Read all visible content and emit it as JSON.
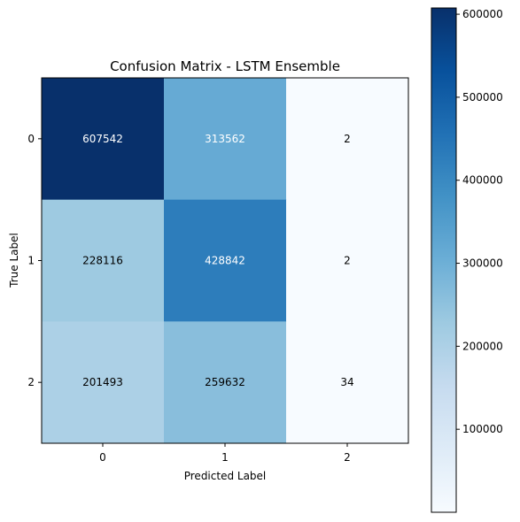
{
  "chart_data": {
    "type": "heatmap",
    "title": "Confusion Matrix - LSTM Ensemble",
    "xlabel": "Predicted Label",
    "ylabel": "True Label",
    "x_categories": [
      "0",
      "1",
      "2"
    ],
    "y_categories": [
      "0",
      "1",
      "2"
    ],
    "matrix": [
      [
        607542,
        313562,
        2
      ],
      [
        228116,
        428842,
        2
      ],
      [
        201493,
        259632,
        34
      ]
    ],
    "colormap": "Blues",
    "color_range": [
      2,
      607542
    ],
    "colorbar_ticks": [
      100000,
      200000,
      300000,
      400000,
      500000,
      600000
    ],
    "colorbar_tick_labels": [
      "100000",
      "200000",
      "300000",
      "400000",
      "500000",
      "600000"
    ],
    "text_color_light": "#ffffff",
    "text_color_dark": "#000000"
  }
}
